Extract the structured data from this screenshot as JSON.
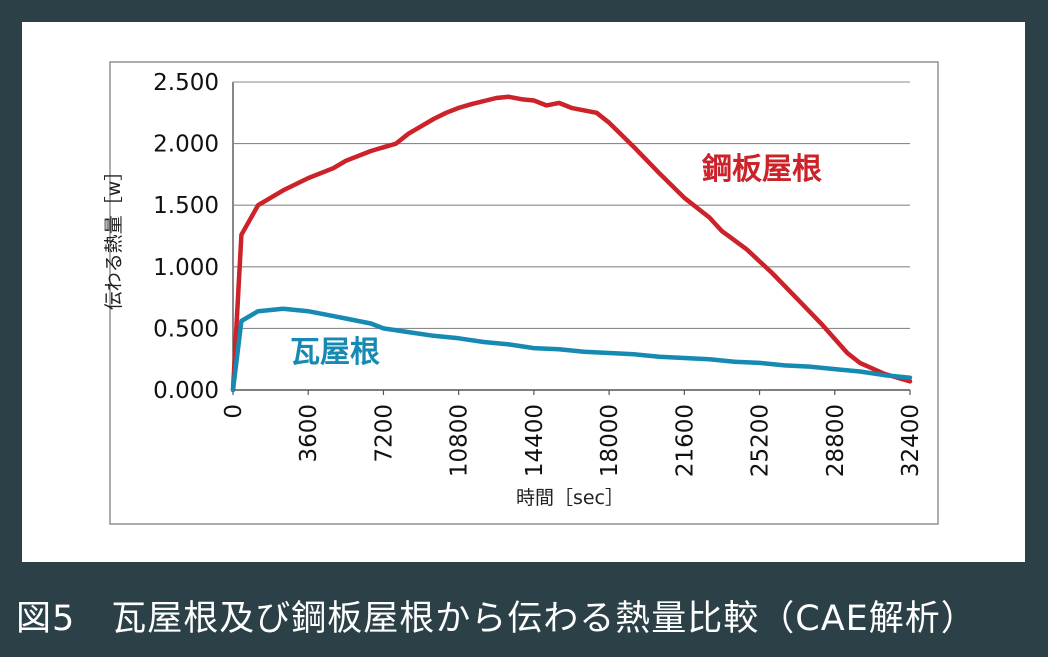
{
  "caption": "図5　瓦屋根及び鋼板屋根から伝わる熱量比較（CAE解析）",
  "chart_data": {
    "type": "line",
    "xlabel": "時間［sec］",
    "ylabel": "伝わる熱量［w］",
    "xlim": [
      0,
      32400
    ],
    "ylim": [
      0,
      2.5
    ],
    "xticks": [
      0,
      3600,
      7200,
      10800,
      14400,
      18000,
      21600,
      25200,
      28800,
      32400
    ],
    "xtick_labels": [
      "0",
      "3600",
      "7200",
      "10800",
      "14400",
      "18000",
      "21600",
      "25200",
      "28800",
      "32400"
    ],
    "yticks": [
      0,
      0.5,
      1.0,
      1.5,
      2.0,
      2.5
    ],
    "ytick_labels": [
      "0.000",
      "0.500",
      "1.000",
      "1.500",
      "2.000",
      "2.500"
    ],
    "grid": "horizontal",
    "series": [
      {
        "name": "鋼板屋根",
        "color": "#cc2229",
        "x": [
          0,
          400,
          1200,
          2400,
          3600,
          4800,
          5400,
          6600,
          7200,
          7800,
          8400,
          9600,
          10200,
          10800,
          11400,
          12600,
          13200,
          13800,
          14400,
          15000,
          15600,
          16200,
          17400,
          18000,
          19200,
          20400,
          21600,
          22800,
          23400,
          24600,
          25800,
          27000,
          28200,
          29400,
          30000,
          31200,
          32400
        ],
        "y": [
          0.0,
          1.26,
          1.5,
          1.62,
          1.72,
          1.8,
          1.86,
          1.94,
          1.97,
          2.0,
          2.08,
          2.2,
          2.25,
          2.29,
          2.32,
          2.37,
          2.38,
          2.36,
          2.35,
          2.31,
          2.33,
          2.29,
          2.25,
          2.17,
          1.97,
          1.76,
          1.56,
          1.4,
          1.29,
          1.14,
          0.95,
          0.74,
          0.53,
          0.3,
          0.22,
          0.13,
          0.07
        ]
      },
      {
        "name": "瓦屋根",
        "color": "#168ab2",
        "x": [
          0,
          400,
          1200,
          2400,
          3600,
          4800,
          5400,
          6600,
          7200,
          8400,
          9600,
          10800,
          12000,
          13200,
          14400,
          15600,
          16800,
          18000,
          19200,
          20400,
          21600,
          22800,
          24000,
          25200,
          26400,
          27600,
          28800,
          30000,
          31200,
          32400
        ],
        "y": [
          0.0,
          0.56,
          0.64,
          0.66,
          0.64,
          0.6,
          0.58,
          0.54,
          0.5,
          0.47,
          0.44,
          0.42,
          0.39,
          0.37,
          0.34,
          0.33,
          0.31,
          0.3,
          0.29,
          0.27,
          0.26,
          0.25,
          0.23,
          0.22,
          0.2,
          0.19,
          0.17,
          0.15,
          0.12,
          0.1
        ]
      }
    ]
  }
}
